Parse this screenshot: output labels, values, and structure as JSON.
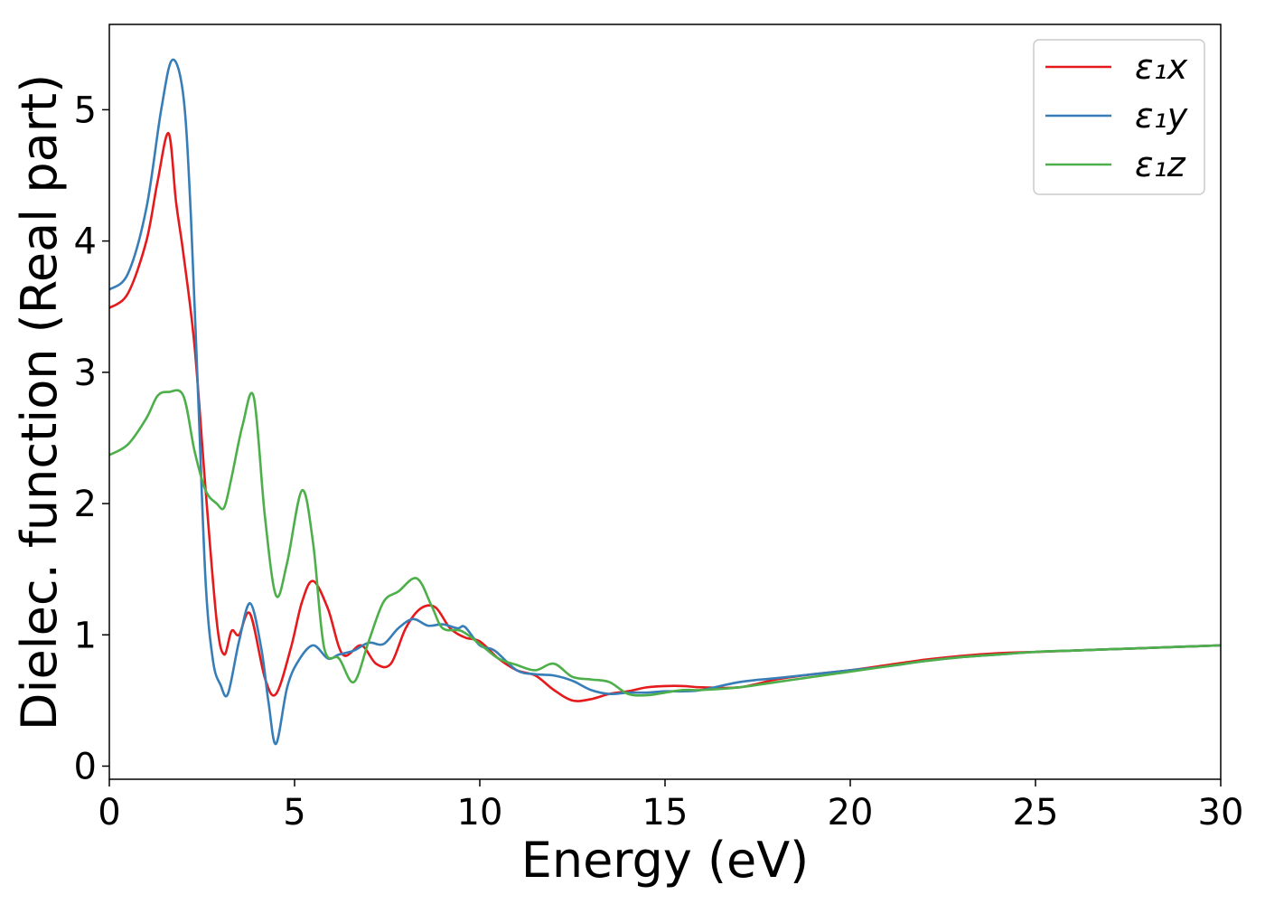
{
  "chart_data": {
    "type": "line",
    "xlabel": "Energy (eV)",
    "ylabel": "Dielec. function (Real part)",
    "xlim": [
      0,
      30
    ],
    "ylim": [
      -0.1,
      5.65
    ],
    "xticks": [
      0,
      5,
      10,
      15,
      20,
      25,
      30
    ],
    "yticks": [
      0,
      1,
      2,
      3,
      4,
      5
    ],
    "xtick_labels": [
      "0",
      "5",
      "10",
      "15",
      "20",
      "25",
      "30"
    ],
    "ytick_labels": [
      "0",
      "1",
      "2",
      "3",
      "4",
      "5"
    ],
    "grid": false,
    "legend_position": "top-right",
    "series": [
      {
        "name": "ε₁x",
        "color": "#e41a1c",
        "x": [
          0,
          0.5,
          1.0,
          1.3,
          1.6,
          1.8,
          2.0,
          2.3,
          2.6,
          2.9,
          3.1,
          3.3,
          3.5,
          3.8,
          4.2,
          4.5,
          4.9,
          5.2,
          5.5,
          5.9,
          6.3,
          6.8,
          7.2,
          7.6,
          8.0,
          8.4,
          8.8,
          9.2,
          9.6,
          10.0,
          10.5,
          11.0,
          11.5,
          12.0,
          12.5,
          13.0,
          13.5,
          14.0,
          14.5,
          15.0,
          15.5,
          16.0,
          17.0,
          18.0,
          19.0,
          20.0,
          21.0,
          22.0,
          23.0,
          24.0,
          25.0,
          26.0,
          27.0,
          28.0,
          29.0,
          30.0
        ],
        "y": [
          3.49,
          3.6,
          4.0,
          4.45,
          4.82,
          4.3,
          3.9,
          3.2,
          2.1,
          1.1,
          0.85,
          1.03,
          1.0,
          1.16,
          0.67,
          0.55,
          0.9,
          1.25,
          1.41,
          1.2,
          0.85,
          0.92,
          0.78,
          0.78,
          1.05,
          1.2,
          1.21,
          1.05,
          0.98,
          0.95,
          0.82,
          0.73,
          0.69,
          0.58,
          0.5,
          0.51,
          0.55,
          0.57,
          0.6,
          0.61,
          0.61,
          0.6,
          0.6,
          0.66,
          0.7,
          0.73,
          0.77,
          0.81,
          0.84,
          0.86,
          0.87,
          0.88,
          0.89,
          0.9,
          0.91,
          0.92
        ]
      },
      {
        "name": "ε₁y",
        "color": "#377eb8",
        "x": [
          0,
          0.5,
          1.0,
          1.4,
          1.7,
          2.0,
          2.2,
          2.4,
          2.6,
          2.8,
          3.0,
          3.2,
          3.5,
          3.8,
          4.1,
          4.3,
          4.5,
          4.8,
          5.1,
          5.5,
          5.9,
          6.2,
          6.6,
          7.0,
          7.4,
          7.8,
          8.2,
          8.6,
          9.0,
          9.4,
          9.6,
          10.0,
          10.4,
          11.0,
          11.5,
          12.0,
          12.5,
          13.0,
          13.5,
          14.0,
          14.5,
          15.0,
          15.5,
          16.0,
          17.0,
          18.0,
          19.0,
          20.0,
          21.0,
          22.0,
          23.0,
          24.0,
          25.0,
          26.0,
          27.0,
          28.0,
          29.0,
          30.0
        ],
        "y": [
          3.63,
          3.75,
          4.25,
          5.0,
          5.38,
          5.1,
          4.2,
          2.8,
          1.4,
          0.8,
          0.62,
          0.55,
          0.95,
          1.24,
          0.9,
          0.48,
          0.17,
          0.6,
          0.8,
          0.92,
          0.82,
          0.85,
          0.88,
          0.94,
          0.93,
          1.05,
          1.12,
          1.07,
          1.08,
          1.05,
          1.06,
          0.92,
          0.88,
          0.73,
          0.7,
          0.69,
          0.65,
          0.58,
          0.55,
          0.56,
          0.56,
          0.57,
          0.57,
          0.58,
          0.64,
          0.67,
          0.7,
          0.73,
          0.76,
          0.8,
          0.83,
          0.85,
          0.87,
          0.88,
          0.89,
          0.9,
          0.91,
          0.92
        ]
      },
      {
        "name": "ε₁z",
        "color": "#4daf4a",
        "x": [
          0,
          0.5,
          1.0,
          1.3,
          1.6,
          2.0,
          2.3,
          2.6,
          2.9,
          3.1,
          3.3,
          3.6,
          3.9,
          4.2,
          4.5,
          4.8,
          5.2,
          5.5,
          5.8,
          6.2,
          6.6,
          7.0,
          7.4,
          7.8,
          8.3,
          8.7,
          9.0,
          9.5,
          10.0,
          10.5,
          11.0,
          11.5,
          12.0,
          12.5,
          13.0,
          13.5,
          14.0,
          14.5,
          15.0,
          15.5,
          16.0,
          17.0,
          18.0,
          19.0,
          20.0,
          21.0,
          22.0,
          23.0,
          24.0,
          25.0,
          26.0,
          27.0,
          28.0,
          29.0,
          30.0
        ],
        "y": [
          2.37,
          2.45,
          2.65,
          2.82,
          2.85,
          2.82,
          2.4,
          2.1,
          2.0,
          1.97,
          2.2,
          2.6,
          2.81,
          1.9,
          1.3,
          1.55,
          2.1,
          1.7,
          0.9,
          0.82,
          0.64,
          0.95,
          1.25,
          1.33,
          1.43,
          1.22,
          1.05,
          1.03,
          0.93,
          0.82,
          0.77,
          0.73,
          0.78,
          0.68,
          0.66,
          0.64,
          0.55,
          0.54,
          0.56,
          0.58,
          0.58,
          0.6,
          0.64,
          0.68,
          0.72,
          0.76,
          0.8,
          0.83,
          0.85,
          0.87,
          0.88,
          0.89,
          0.9,
          0.91,
          0.92
        ]
      }
    ]
  }
}
